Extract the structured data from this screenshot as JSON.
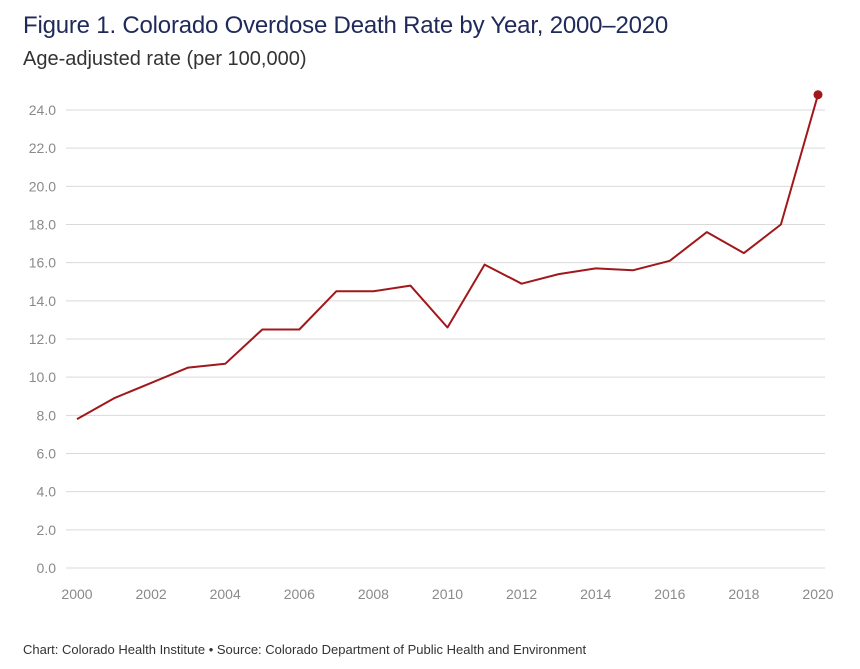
{
  "title": "Figure 1. Colorado Overdose Death Rate by Year, 2000–2020",
  "subtitle": "Age-adjusted rate (per 100,000)",
  "footer": "Chart: Colorado Health Institute • Source: Colorado Department of Public Health and Environment",
  "colors": {
    "line": "#a0181c",
    "grid": "#d9d9d9",
    "title": "#1f2a5a",
    "tick": "#8a8a8a"
  },
  "chart_data": {
    "type": "line",
    "title": "Figure 1. Colorado Overdose Death Rate by Year, 2000–2020",
    "ylabel": "Age-adjusted rate (per 100,000)",
    "xlabel": "",
    "x": [
      2000,
      2001,
      2002,
      2003,
      2004,
      2005,
      2006,
      2007,
      2008,
      2009,
      2010,
      2011,
      2012,
      2013,
      2014,
      2015,
      2016,
      2017,
      2018,
      2019,
      2020
    ],
    "series": [
      {
        "name": "",
        "values": [
          7.8,
          8.9,
          9.7,
          10.5,
          10.7,
          12.5,
          12.5,
          14.5,
          14.5,
          14.8,
          12.6,
          15.9,
          14.9,
          15.4,
          15.7,
          15.6,
          16.1,
          17.6,
          16.5,
          18.0,
          24.8
        ]
      }
    ],
    "ylim": [
      0,
      24
    ],
    "yticks": [
      "0.0",
      "2.0",
      "4.0",
      "6.0",
      "8.0",
      "10.0",
      "12.0",
      "14.0",
      "16.0",
      "18.0",
      "20.0",
      "22.0",
      "24.0"
    ],
    "xticks": [
      "2000",
      "2002",
      "2004",
      "2006",
      "2008",
      "2010",
      "2012",
      "2014",
      "2016",
      "2018",
      "2020"
    ],
    "grid": true,
    "highlight_last_point": true
  }
}
